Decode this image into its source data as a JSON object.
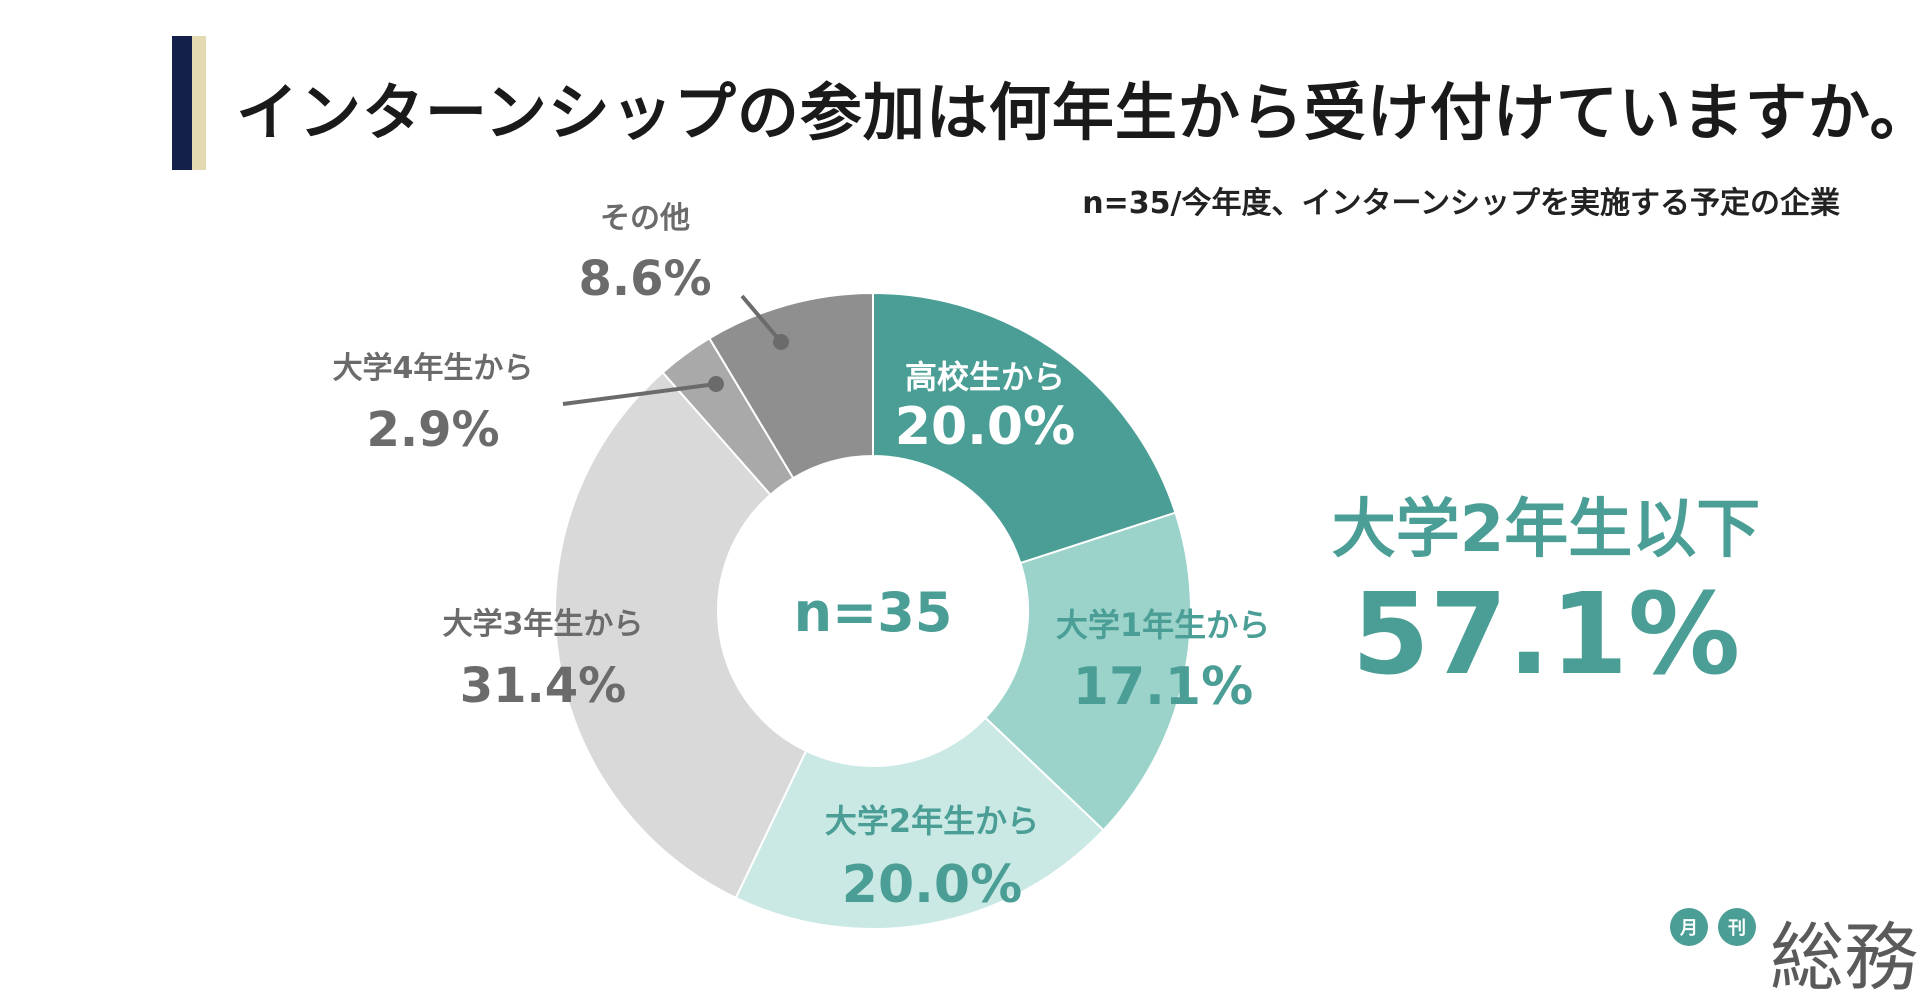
{
  "header": {
    "title": "インターンシップの参加は何年生から受け付けていますか。",
    "subtitle": "n=35/今年度、インターンシップを実施する予定の企業"
  },
  "highlight": {
    "label": "大学2年生以下",
    "value": "57.1%"
  },
  "logo": {
    "badge_1": "月",
    "badge_2": "刊",
    "word": "総務"
  },
  "chart_data": {
    "type": "pie",
    "donut": true,
    "center_label": "n=35",
    "unit": "%",
    "slices": [
      {
        "label": "高校生から",
        "value": 20.0,
        "display": "20.0%",
        "color": "#4a9e95",
        "text_color": "#ffffff"
      },
      {
        "label": "大学1年生から",
        "value": 17.1,
        "display": "17.1%",
        "color": "#9bd3cb",
        "text_color": "#4a9e95"
      },
      {
        "label": "大学2年生から",
        "value": 20.0,
        "display": "20.0%",
        "color": "#cae8e4",
        "text_color": "#4a9e95"
      },
      {
        "label": "大学3年生から",
        "value": 31.4,
        "display": "31.4%",
        "color": "#d9d9d9",
        "text_color": "#6b6b6b"
      },
      {
        "label": "大学4年生から",
        "value": 2.9,
        "display": "2.9%",
        "color": "#a9a9a9",
        "text_color": "#6b6b6b"
      },
      {
        "label": "その他",
        "value": 8.6,
        "display": "8.6%",
        "color": "#8f8f8f",
        "text_color": "#6b6b6b"
      }
    ]
  }
}
